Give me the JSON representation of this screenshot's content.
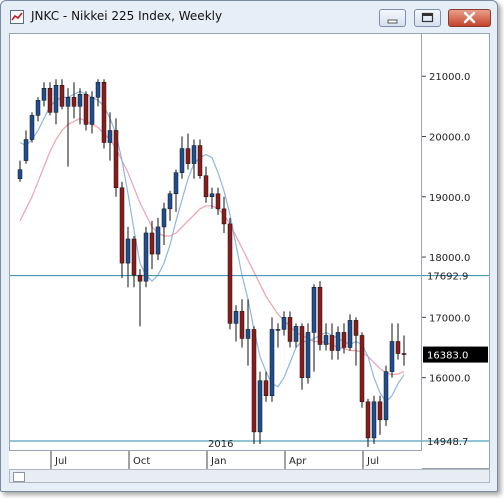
{
  "window": {
    "title": "JNKC - Nikkei 225 Index, Weekly",
    "buttons": {
      "minimize": "minimize-icon",
      "maximize": "maximize-icon",
      "close": "close-icon"
    }
  },
  "colors": {
    "up": "#1f4f8f",
    "down": "#8b1c1c",
    "ma_fast": "#8fb6e0",
    "ma_slow": "#f0a0b0",
    "hline": "#2a8aa8",
    "last_price_bg": "#000000"
  },
  "chart_data": {
    "type": "candlestick",
    "title": "JNKC - Nikkei 225 Index, Weekly",
    "ylim": [
      14800,
      21700
    ],
    "y_ticks": [
      "21000.0",
      "20000.0",
      "19000.0",
      "18000.0",
      "17000.0",
      "16000.0"
    ],
    "x_ticks": [
      {
        "label": "Jul",
        "index": 6
      },
      {
        "label": "Oct",
        "index": 19
      },
      {
        "label": "Jan",
        "index": 32
      },
      {
        "label": "Apr",
        "index": 45
      },
      {
        "label": "Jul",
        "index": 58
      }
    ],
    "year_label": {
      "label": "2016",
      "index": 33
    },
    "price_lines": [
      {
        "label": "17692.9",
        "value": 17692.9
      },
      {
        "label": "14948.7",
        "value": 14948.7
      }
    ],
    "last_price": {
      "label": "16383.0",
      "value": 16383.0
    },
    "candles": [
      [
        19300,
        19600,
        19250,
        19450
      ],
      [
        19600,
        20100,
        19550,
        19950
      ],
      [
        19950,
        20400,
        19900,
        20350
      ],
      [
        20350,
        20650,
        20250,
        20600
      ],
      [
        20600,
        20900,
        20500,
        20800
      ],
      [
        20800,
        20900,
        20350,
        20400
      ],
      [
        20400,
        20950,
        20200,
        20850
      ],
      [
        20850,
        20950,
        20450,
        20500
      ],
      [
        20500,
        20800,
        19500,
        20650
      ],
      [
        20650,
        20900,
        20300,
        20500
      ],
      [
        20500,
        20800,
        20200,
        20700
      ],
      [
        20700,
        20750,
        20100,
        20200
      ],
      [
        20200,
        20750,
        20050,
        20650
      ],
      [
        20650,
        20950,
        20500,
        20900
      ],
      [
        20900,
        20950,
        19800,
        19900
      ],
      [
        19900,
        20400,
        19600,
        20100
      ],
      [
        20100,
        20300,
        19000,
        19150
      ],
      [
        19150,
        19250,
        17650,
        17900
      ],
      [
        17900,
        18500,
        17500,
        18300
      ],
      [
        18300,
        18350,
        17500,
        17700
      ],
      [
        17700,
        17800,
        16850,
        17600
      ],
      [
        17600,
        18500,
        17500,
        18400
      ],
      [
        18400,
        18600,
        17800,
        18050
      ],
      [
        18050,
        18650,
        17950,
        18500
      ],
      [
        18500,
        18900,
        18200,
        18800
      ],
      [
        18800,
        19100,
        18600,
        19050
      ],
      [
        19050,
        19450,
        18750,
        19400
      ],
      [
        19400,
        20000,
        19300,
        19800
      ],
      [
        19800,
        20050,
        19450,
        19550
      ],
      [
        19550,
        19950,
        19300,
        19850
      ],
      [
        19850,
        19950,
        19300,
        19350
      ],
      [
        19350,
        19500,
        18900,
        19000
      ],
      [
        19000,
        19150,
        18800,
        19050
      ],
      [
        19050,
        19150,
        18700,
        18800
      ],
      [
        18800,
        19000,
        18400,
        18550
      ],
      [
        18550,
        18650,
        16800,
        16900
      ],
      [
        16900,
        17200,
        16600,
        17100
      ],
      [
        17100,
        17300,
        16500,
        16650
      ],
      [
        16650,
        17300,
        16200,
        16800
      ],
      [
        16800,
        16850,
        14900,
        15100
      ],
      [
        15100,
        16100,
        14900,
        15950
      ],
      [
        15950,
        16100,
        15600,
        15700
      ],
      [
        15700,
        17000,
        15600,
        16800
      ],
      [
        16800,
        16900,
        16500,
        16800
      ],
      [
        16800,
        17100,
        16700,
        17000
      ],
      [
        17000,
        17100,
        16500,
        16600
      ],
      [
        16600,
        16900,
        16500,
        16850
      ],
      [
        16850,
        16900,
        15800,
        16000
      ],
      [
        16000,
        16900,
        15900,
        16750
      ],
      [
        16750,
        17550,
        16100,
        17500
      ],
      [
        17500,
        17600,
        16450,
        16550
      ],
      [
        16550,
        16900,
        16450,
        16700
      ],
      [
        16700,
        16900,
        16300,
        16450
      ],
      [
        16450,
        16850,
        16300,
        16750
      ],
      [
        16750,
        16900,
        16400,
        16500
      ],
      [
        16500,
        17050,
        16450,
        16950
      ],
      [
        16950,
        17000,
        16200,
        16700
      ],
      [
        16700,
        16750,
        15500,
        15600
      ],
      [
        15600,
        15650,
        14850,
        15000
      ],
      [
        15000,
        15700,
        14900,
        15600
      ],
      [
        15600,
        15700,
        15050,
        15300
      ],
      [
        15300,
        16200,
        15200,
        16100
      ],
      [
        16100,
        16900,
        16000,
        16600
      ],
      [
        16600,
        16900,
        16300,
        16400
      ],
      [
        16400,
        16700,
        16200,
        16383
      ]
    ],
    "ma_fast": [
      19900,
      19850,
      19950,
      20100,
      20300,
      20500,
      20600,
      20650,
      20650,
      20700,
      20750,
      20700,
      20650,
      20600,
      20500,
      20300,
      20050,
      19600,
      19050,
      18450,
      17900,
      17700,
      17600,
      17700,
      17900,
      18200,
      18600,
      18950,
      19300,
      19550,
      19650,
      19700,
      19650,
      19400,
      19100,
      18700,
      18200,
      17700,
      17300,
      16800,
      16350,
      16100,
      15900,
      15850,
      16000,
      16250,
      16500,
      16600,
      16600,
      16650,
      16700,
      16750,
      16700,
      16650,
      16600,
      16550,
      16600,
      16550,
      16350,
      16000,
      15750,
      15600,
      15700,
      15900,
      16050
    ],
    "ma_slow": [
      18600,
      18800,
      19000,
      19250,
      19500,
      19750,
      19950,
      20100,
      20200,
      20250,
      20300,
      20250,
      20200,
      20150,
      20050,
      19950,
      19800,
      19600,
      19400,
      19150,
      18900,
      18700,
      18500,
      18400,
      18350,
      18350,
      18400,
      18500,
      18600,
      18700,
      18800,
      18850,
      18850,
      18800,
      18700,
      18550,
      18350,
      18150,
      17950,
      17750,
      17550,
      17350,
      17200,
      17050,
      16950,
      16850,
      16750,
      16700,
      16650,
      16600,
      16600,
      16580,
      16550,
      16500,
      16480,
      16450,
      16450,
      16420,
      16350,
      16250,
      16150,
      16080,
      16050,
      16060,
      16100
    ]
  }
}
